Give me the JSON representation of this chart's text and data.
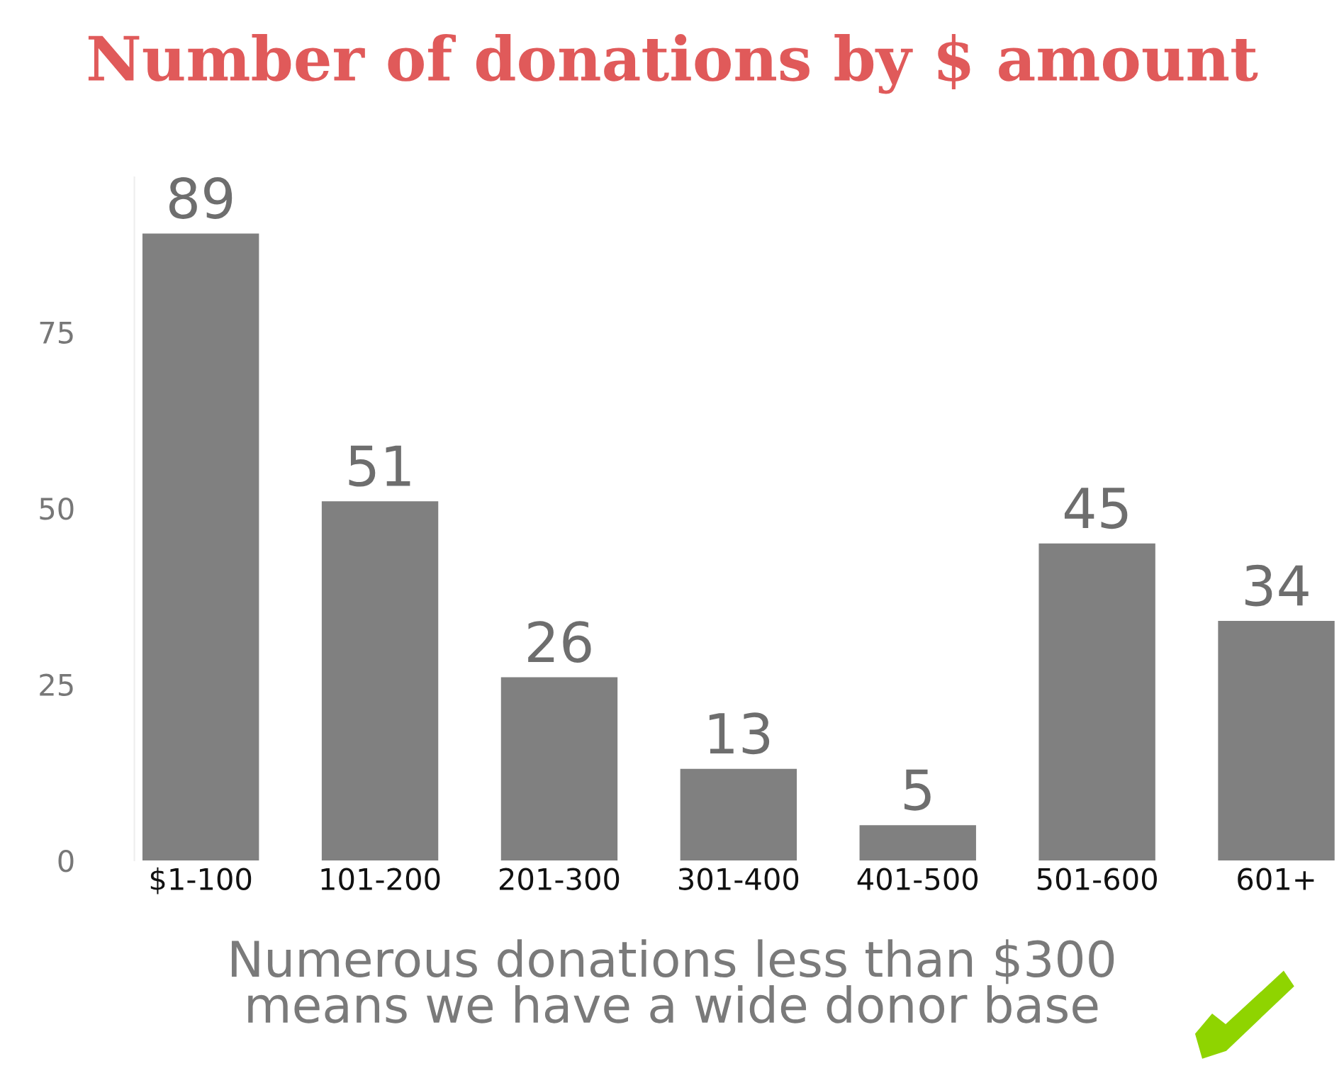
{
  "chart_data": {
    "type": "bar",
    "title": "Number of donations by $ amount",
    "categories": [
      "$1-100",
      "101-200",
      "201-300",
      "301-400",
      "401-500",
      "501-600",
      "601+"
    ],
    "values": [
      89,
      51,
      26,
      13,
      5,
      45,
      34
    ],
    "color": "#808080",
    "ylim": [
      0,
      97
    ],
    "yticks": [
      0,
      25,
      50,
      75
    ],
    "data_labels": true,
    "grid": false,
    "legend": false,
    "annotations": [
      "Numerous donations less than $300\nmeans we have a wide donor base"
    ]
  }
}
